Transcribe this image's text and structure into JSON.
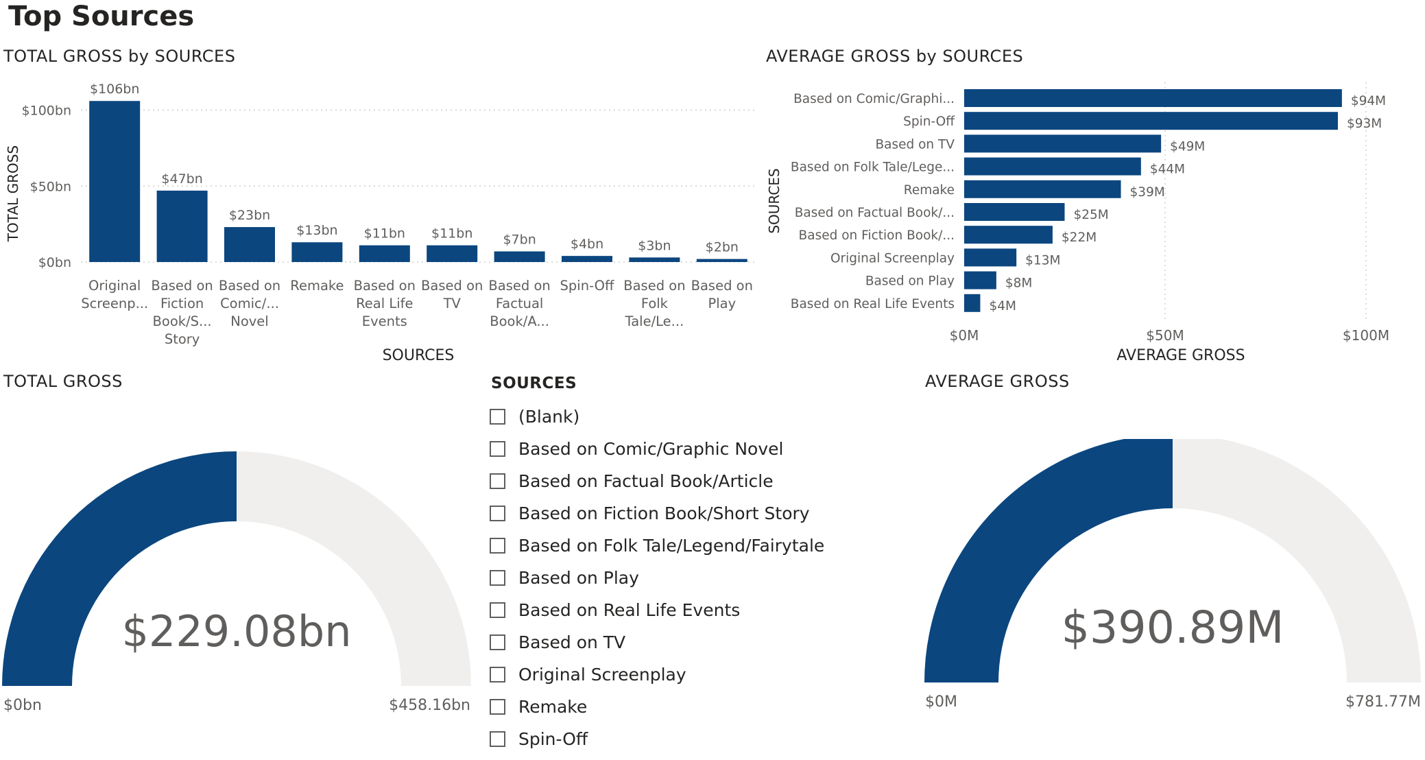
{
  "page": {
    "title": "Top Sources"
  },
  "colors": {
    "bar": "#0b467f",
    "gauge_track": "#f0efee",
    "text": "#252423",
    "axis_text": "#605e5c",
    "grid": "#c8c6c4"
  },
  "total_by_sources": {
    "title": "TOTAL GROSS by SOURCES",
    "xlabel": "SOURCES",
    "ylabel": "TOTAL GROSS",
    "yticks": [
      "$0bn",
      "$50bn",
      "$100bn"
    ],
    "categories": [
      [
        "Original",
        "Screenp..."
      ],
      [
        "Based on",
        "Fiction",
        "Book/S...",
        "Story"
      ],
      [
        "Based on",
        "Comic/...",
        "Novel"
      ],
      [
        "Remake"
      ],
      [
        "Based on",
        "Real Life",
        "Events"
      ],
      [
        "Based on",
        "TV"
      ],
      [
        "Based on",
        "Factual",
        "Book/A..."
      ],
      [
        "Spin-Off"
      ],
      [
        "Based on",
        "Folk",
        "Tale/Le..."
      ],
      [
        "Based on",
        "Play"
      ]
    ],
    "labels": [
      "$106bn",
      "$47bn",
      "$23bn",
      "$13bn",
      "$11bn",
      "$11bn",
      "$7bn",
      "$4bn",
      "$3bn",
      "$2bn"
    ]
  },
  "average_by_sources": {
    "title": "AVERAGE GROSS by SOURCES",
    "xlabel": "AVERAGE GROSS",
    "ylabel": "SOURCES",
    "xticks": [
      "$0M",
      "$50M",
      "$100M"
    ],
    "categories": [
      "Based on Comic/Graphi...",
      "Spin-Off",
      "Based on TV",
      "Based on Folk Tale/Lege...",
      "Remake",
      "Based on Factual Book/...",
      "Based on Fiction Book/...",
      "Original Screenplay",
      "Based on Play",
      "Based on Real Life Events"
    ],
    "labels": [
      "$94M",
      "$93M",
      "$49M",
      "$44M",
      "$39M",
      "$25M",
      "$22M",
      "$13M",
      "$8M",
      "$4M"
    ]
  },
  "total_gauge": {
    "title": "TOTAL GROSS",
    "value_label": "$229.08bn",
    "min_label": "$0bn",
    "max_label": "$458.16bn"
  },
  "average_gauge": {
    "title": "AVERAGE GROSS",
    "value_label": "$390.89M",
    "min_label": "$0M",
    "max_label": "$781.77M"
  },
  "slicer": {
    "title": "SOURCES",
    "options": [
      "(Blank)",
      "Based on Comic/Graphic Novel",
      "Based on Factual Book/Article",
      "Based on Fiction Book/Short Story",
      "Based on Folk Tale/Legend/Fairytale",
      "Based on Play",
      "Based on Real Life Events",
      "Based on TV",
      "Original Screenplay",
      "Remake",
      "Spin-Off"
    ]
  },
  "chart_data": [
    {
      "type": "bar",
      "title": "TOTAL GROSS by SOURCES",
      "xlabel": "SOURCES",
      "ylabel": "TOTAL GROSS",
      "unit": "bn",
      "categories": [
        "Original Screenplay",
        "Based on Fiction Book/Short Story",
        "Based on Comic/Graphic Novel",
        "Remake",
        "Based on Real Life Events",
        "Based on TV",
        "Based on Factual Book/Article",
        "Spin-Off",
        "Based on Folk Tale/Legend/Fairytale",
        "Based on Play"
      ],
      "values": [
        106,
        47,
        23,
        13,
        11,
        11,
        7,
        4,
        3,
        2
      ],
      "ylim": [
        0,
        120
      ],
      "grid": true
    },
    {
      "type": "bar",
      "orientation": "horizontal",
      "title": "AVERAGE GROSS by SOURCES",
      "xlabel": "AVERAGE GROSS",
      "ylabel": "SOURCES",
      "unit": "M",
      "categories": [
        "Based on Comic/Graphic Novel",
        "Spin-Off",
        "Based on TV",
        "Based on Folk Tale/Legend/Fairytale",
        "Remake",
        "Based on Factual Book/Article",
        "Based on Fiction Book/Short Story",
        "Original Screenplay",
        "Based on Play",
        "Based on Real Life Events"
      ],
      "values": [
        94,
        93,
        49,
        44,
        39,
        25,
        22,
        13,
        8,
        4
      ],
      "xlim": [
        0,
        100
      ],
      "grid": true
    },
    {
      "type": "gauge",
      "title": "TOTAL GROSS",
      "unit": "bn",
      "value": 229.08,
      "min": 0,
      "max": 458.16
    },
    {
      "type": "gauge",
      "title": "AVERAGE GROSS",
      "unit": "M",
      "value": 390.89,
      "min": 0,
      "max": 781.77
    }
  ]
}
